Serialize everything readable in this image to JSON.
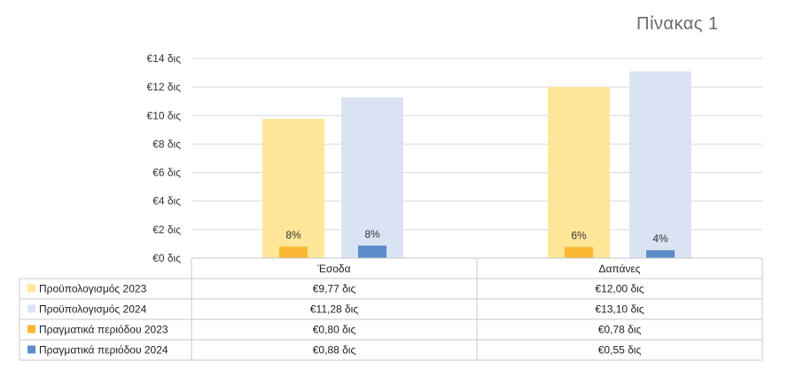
{
  "title": "Πίνακας 1",
  "chart_data": {
    "type": "bar",
    "title": "Πίνακας 1",
    "categories": [
      "Έσοδα",
      "Δαπάνες"
    ],
    "ylim": [
      0,
      14
    ],
    "yticks": [
      "€0 δις",
      "€2 δις",
      "€4 δις",
      "€6 δις",
      "€8 δις",
      "€10 δις",
      "€12 δις",
      "€14 δις"
    ],
    "grid": true,
    "legend": "data-table-left",
    "series": [
      {
        "name": "Προϋπολογισμός 2023",
        "color": "#FFE699",
        "values": [
          9.77,
          12.0
        ],
        "table": [
          "€9,77 δις",
          "€12,00 δις"
        ]
      },
      {
        "name": "Προϋπολογισμός 2024",
        "color": "#DAE3F3",
        "values": [
          11.28,
          13.1
        ],
        "table": [
          "€11,28 δις",
          "€13,10 δις"
        ]
      },
      {
        "name": "Πραγματικά περιόδου 2023",
        "color": "#FBB734",
        "values": [
          0.8,
          0.78
        ],
        "table": [
          "€0,80 δις",
          "€0,78 δις"
        ],
        "labels": [
          "8%",
          "6%"
        ]
      },
      {
        "name": "Πραγματικά περιόδου 2024",
        "color": "#5B8BC9",
        "values": [
          0.88,
          0.55
        ],
        "table": [
          "€0,88 δις",
          "€0,55 δις"
        ],
        "labels": [
          "8%",
          "4%"
        ]
      }
    ]
  }
}
